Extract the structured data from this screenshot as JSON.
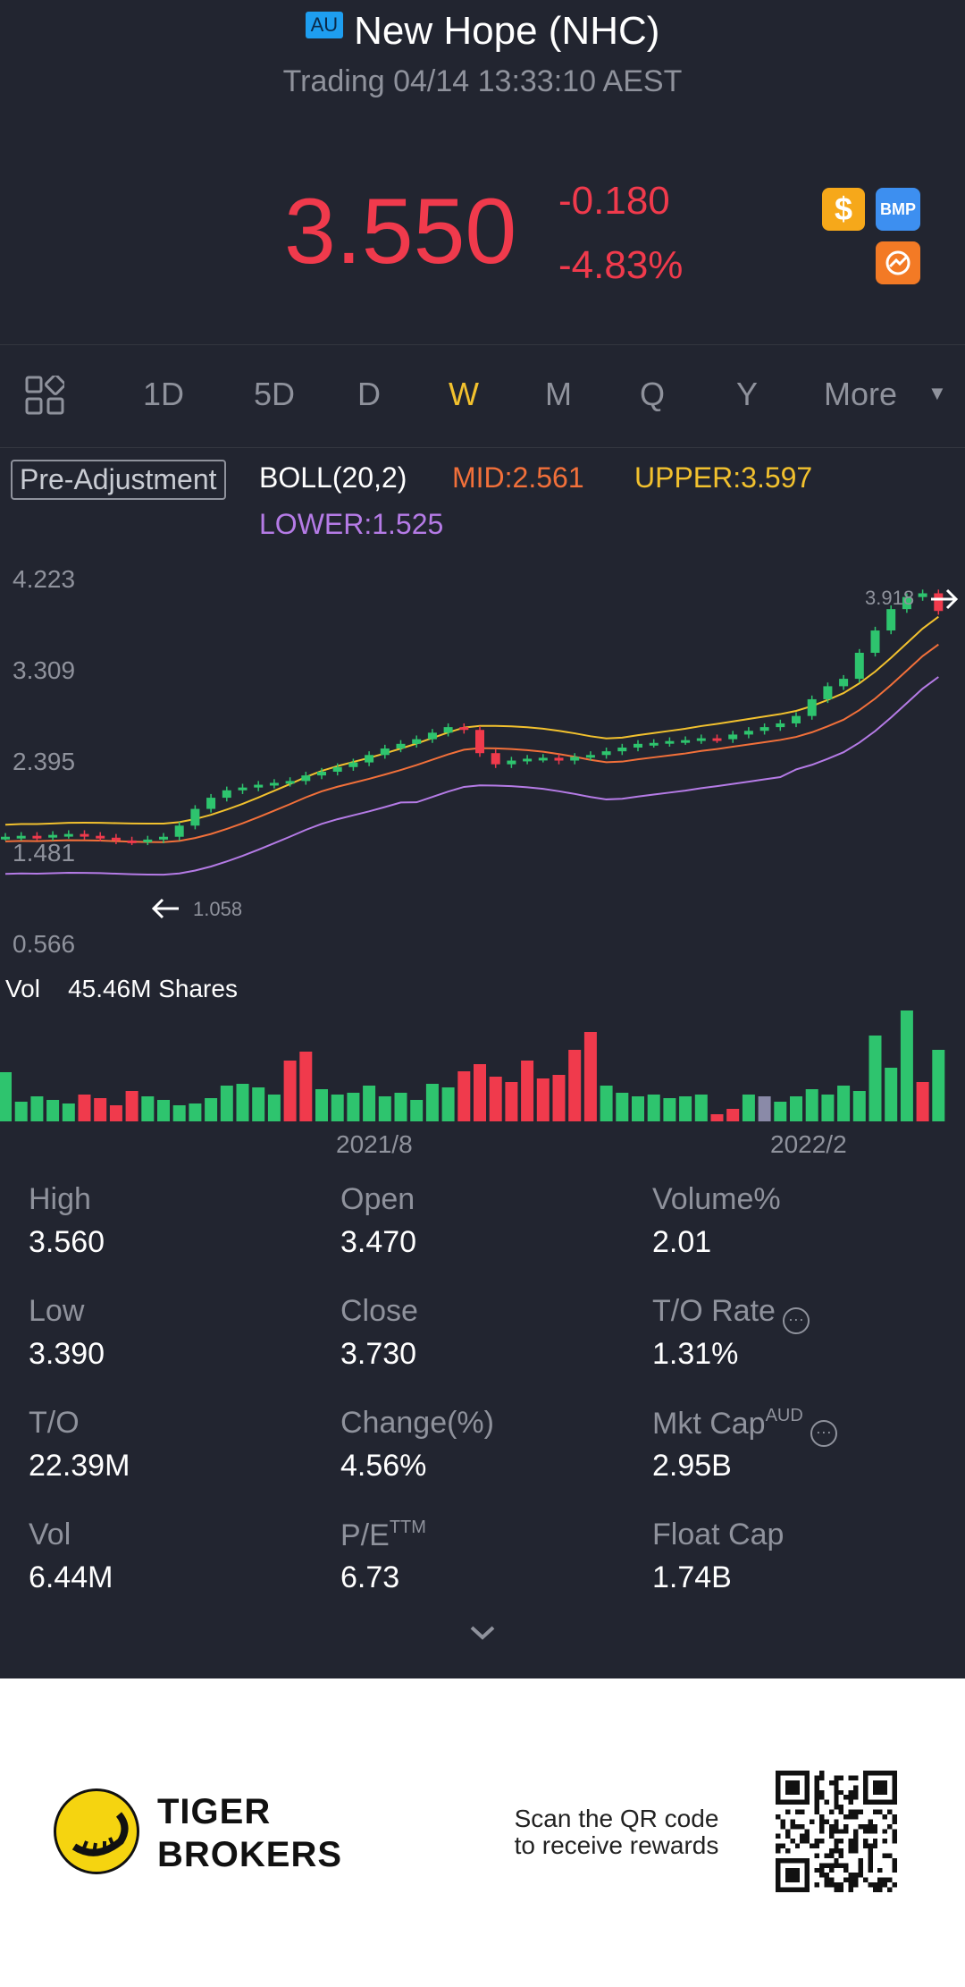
{
  "header": {
    "market_badge": "AU",
    "title": "New Hope (NHC)",
    "status": "Trading 04/14 13:33:10 AEST"
  },
  "quote": {
    "price": "3.550",
    "change": "-0.180",
    "change_pct": "-4.83%",
    "color_down": "#f03a4c"
  },
  "badges": {
    "dollar": "$",
    "bmp": "BMP"
  },
  "tabs": [
    {
      "label": "1D"
    },
    {
      "label": "5D"
    },
    {
      "label": "D"
    },
    {
      "label": "W",
      "active": true
    },
    {
      "label": "M"
    },
    {
      "label": "Q"
    },
    {
      "label": "Y"
    },
    {
      "label": "More"
    }
  ],
  "indicator": {
    "adjust": "Pre-Adjustment",
    "name": "BOLL(20,2)",
    "mid": "MID:2.561",
    "upper": "UPPER:3.597",
    "lower": "LOWER:1.525"
  },
  "chart_data": {
    "type": "candlestick",
    "y_ticks": [
      "4.223",
      "3.309",
      "2.395",
      "1.481",
      "0.566"
    ],
    "ylim": [
      0.566,
      4.223
    ],
    "max_label": "3.918",
    "min_label": "1.058",
    "x_labels": [
      "2021/8",
      "2022/2"
    ],
    "volume_label": "Vol",
    "volume_value": "45.46M Shares",
    "colors": {
      "up": "#2ec46e",
      "down": "#f03a4c",
      "mid": "#f2703a",
      "upper": "#f2c12e",
      "lower": "#b57be6"
    }
  },
  "stats": {
    "high": {
      "label": "High",
      "value": "3.560"
    },
    "open": {
      "label": "Open",
      "value": "3.470"
    },
    "volume_pct": {
      "label": "Volume%",
      "value": "2.01"
    },
    "low": {
      "label": "Low",
      "value": "3.390"
    },
    "close": {
      "label": "Close",
      "value": "3.730"
    },
    "to_rate": {
      "label": "T/O Rate",
      "value": "1.31%"
    },
    "to": {
      "label": "T/O",
      "value": "22.39M"
    },
    "change": {
      "label": "Change(%)",
      "value": "4.56%"
    },
    "mkt_cap": {
      "label": "Mkt Cap",
      "sup": "AUD",
      "value": "2.95B"
    },
    "vol": {
      "label": "Vol",
      "value": "6.44M"
    },
    "pe": {
      "label": "P/E",
      "sup": "TTM",
      "value": "6.73"
    },
    "float_cap": {
      "label": "Float Cap",
      "value": "1.74B"
    }
  },
  "footer": {
    "brand_line1": "TIGER",
    "brand_line2": "BROKERS",
    "scan_line1": "Scan the QR code",
    "scan_line2": "to receive rewards"
  }
}
